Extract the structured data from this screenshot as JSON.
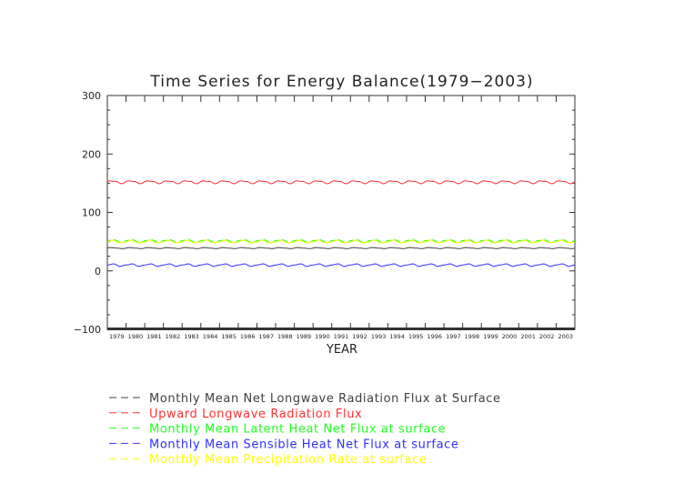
{
  "chart_data": {
    "type": "line",
    "title": "Time Series for Energy Balance(1979−2003)",
    "xlabel": "YEAR",
    "ylabel": "",
    "ylim": [
      -100,
      300
    ],
    "yticks": [
      300,
      200,
      100,
      0,
      -100
    ],
    "yticklabels": [
      "300",
      "200",
      "100",
      "0",
      "−100"
    ],
    "x_categories": [
      "1979",
      "1980",
      "1981",
      "1982",
      "1983",
      "1984",
      "1985",
      "1986",
      "1987",
      "1988",
      "1989",
      "1990",
      "1991",
      "1992",
      "1993",
      "1994",
      "1995",
      "1996",
      "1997",
      "1998",
      "1999",
      "2000",
      "2001",
      "2002",
      "2003"
    ],
    "grid": false,
    "legend_position": "bottom",
    "sampling": "monthly",
    "series": [
      {
        "name": "Monthly Mean Net Longwave Radiation Flux at Surface",
        "color": "#404040",
        "mean": 39,
        "seasonal_amplitude": 0.8
      },
      {
        "name": "Upward Longwave Radiation Flux",
        "color": "#ff3030",
        "mean": 152,
        "seasonal_amplitude": 2.2
      },
      {
        "name": "Monthly Mean Latent Heat Net Flux at surface",
        "color": "#20ff20",
        "mean": 51,
        "seasonal_amplitude": 2.2
      },
      {
        "name": "Monthly Mean Sensible Heat Net Flux at surface",
        "color": "#3030ff",
        "mean": 10,
        "seasonal_amplitude": 1.8
      },
      {
        "name": "Monthly Mean Precipitation Rate at surface",
        "color": "#ffff00",
        "mean": 50,
        "seasonal_amplitude": 2.0
      }
    ]
  }
}
